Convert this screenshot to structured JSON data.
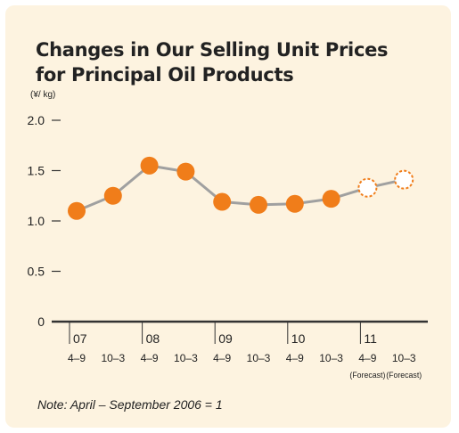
{
  "chart_data": {
    "type": "line",
    "title_line1": "Changes in Our Selling Unit Prices",
    "title_line2": "for Principal Oil Products",
    "unit": "(¥/ kg)",
    "y_ticks": [
      "0",
      "0.5",
      "1.0",
      "1.5",
      "2.0"
    ],
    "y_tick_values": [
      0,
      0.5,
      1.0,
      1.5,
      2.0
    ],
    "ylim": [
      0,
      2.0
    ],
    "years": [
      "07",
      "08",
      "09",
      "10",
      "11"
    ],
    "categories": [
      "4–9",
      "10–3",
      "4–9",
      "10–3",
      "4–9",
      "10–3",
      "4–9",
      "10–3",
      "4–9",
      "10–3"
    ],
    "forecast_labels": [
      "(Forecast)",
      "(Forecast)"
    ],
    "values": [
      1.1,
      1.25,
      1.55,
      1.49,
      1.19,
      1.16,
      1.17,
      1.22,
      1.33,
      1.41
    ],
    "forecast": [
      false,
      false,
      false,
      false,
      false,
      false,
      false,
      false,
      true,
      true
    ],
    "grid": false,
    "colors": {
      "marker": "#f07d1a",
      "line": "#a0a0a0",
      "axis": "#333333",
      "background": "#fdf3e0"
    },
    "note": "Note: April – September 2006 = 1"
  }
}
